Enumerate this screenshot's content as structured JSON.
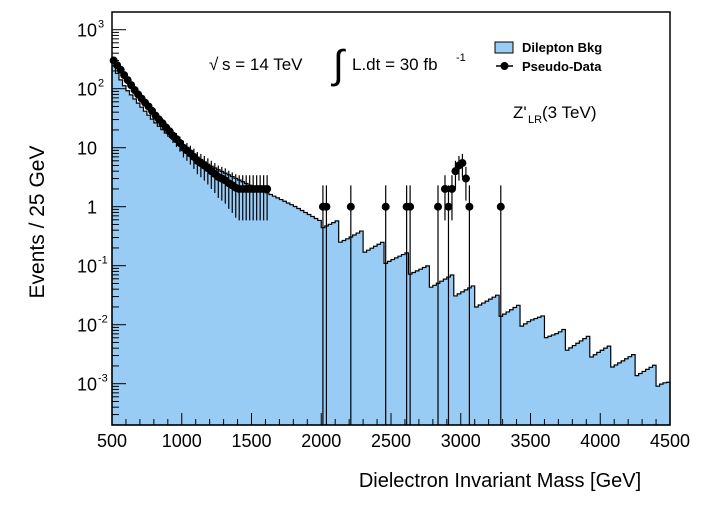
{
  "chart_data": {
    "type": "histogram_with_points",
    "xlabel": "Dielectron Invariant Mass [GeV]",
    "ylabel": "Events / 25 GeV",
    "xlim": [
      500,
      4500
    ],
    "ylim_log10": [
      -3.7,
      3.3
    ],
    "y_scale": "log",
    "x_ticks": [
      500,
      1000,
      1500,
      2000,
      2500,
      3000,
      3500,
      4000,
      4500
    ],
    "y_ticks": [
      {
        "value": 1000,
        "label": "10",
        "exp": "3"
      },
      {
        "value": 100,
        "label": "10",
        "exp": "2"
      },
      {
        "value": 10,
        "label": "10",
        "exp": ""
      },
      {
        "value": 1,
        "label": "1",
        "exp": ""
      },
      {
        "value": 0.1,
        "label": "10",
        "exp": "-1"
      },
      {
        "value": 0.01,
        "label": "10",
        "exp": "-2"
      },
      {
        "value": 0.001,
        "label": "10",
        "exp": "-3"
      }
    ],
    "annotations": {
      "sqrt_s": "s = 14 TeV",
      "sqrt_symbol": "√",
      "integral_symbol": "∫",
      "lumi": "L.dt = 30 fb",
      "lumi_exp": "-1",
      "signal_main": "Z'",
      "signal_sub": "LR",
      "signal_rest": " (3 TeV)"
    },
    "legend": {
      "placement": "top-right",
      "entries": [
        {
          "label": "Dilepton Bkg",
          "kind": "fill"
        },
        {
          "label": "Pseudo-Data",
          "kind": "marker"
        }
      ]
    },
    "colors": {
      "background_fill": "#99ccf5",
      "outline": "#000000",
      "marker": "#000000"
    },
    "series": [
      {
        "name": "Dilepton Bkg",
        "kind": "step_fill",
        "bin_width": 25,
        "log_anchors": [
          [
            500,
            2.45
          ],
          [
            550,
            2.2
          ],
          [
            600,
            2.0
          ],
          [
            700,
            1.72
          ],
          [
            800,
            1.45
          ],
          [
            900,
            1.22
          ],
          [
            1000,
            1.02
          ],
          [
            1200,
            0.7
          ],
          [
            1500,
            0.35
          ],
          [
            1600,
            0.25
          ],
          [
            1800,
            0.02
          ],
          [
            2000,
            -0.25
          ],
          [
            2200,
            -0.5
          ],
          [
            2500,
            -0.82
          ],
          [
            2800,
            -1.2
          ],
          [
            3000,
            -1.4
          ],
          [
            3300,
            -1.72
          ],
          [
            3500,
            -1.9
          ],
          [
            3700,
            -2.2
          ],
          [
            4000,
            -2.45
          ],
          [
            4200,
            -2.65
          ],
          [
            4450,
            -2.9
          ],
          [
            4500,
            -3.0
          ]
        ]
      },
      {
        "name": "Pseudo-Data",
        "kind": "points",
        "points": [
          [
            512,
            300
          ],
          [
            537,
            250
          ],
          [
            562,
            210
          ],
          [
            587,
            170
          ],
          [
            612,
            140
          ],
          [
            637,
            115
          ],
          [
            662,
            95
          ],
          [
            687,
            80
          ],
          [
            712,
            68
          ],
          [
            737,
            58
          ],
          [
            762,
            50
          ],
          [
            787,
            42
          ],
          [
            812,
            35
          ],
          [
            837,
            30
          ],
          [
            862,
            26
          ],
          [
            887,
            22
          ],
          [
            912,
            19
          ],
          [
            937,
            16
          ],
          [
            962,
            14
          ],
          [
            987,
            12
          ],
          [
            1012,
            10
          ],
          [
            1037,
            9
          ],
          [
            1062,
            8
          ],
          [
            1087,
            7
          ],
          [
            1112,
            6
          ],
          [
            1137,
            5.5
          ],
          [
            1162,
            5
          ],
          [
            1187,
            4.5
          ],
          [
            1212,
            4
          ],
          [
            1237,
            3.6
          ],
          [
            1262,
            3.2
          ],
          [
            1287,
            3
          ],
          [
            1312,
            2.8
          ],
          [
            1337,
            2.5
          ],
          [
            1362,
            2.3
          ],
          [
            1387,
            2.1
          ],
          [
            1412,
            2
          ],
          [
            1437,
            2
          ],
          [
            1462,
            2
          ],
          [
            1487,
            2
          ],
          [
            1512,
            2
          ],
          [
            1537,
            2
          ],
          [
            1562,
            2
          ],
          [
            1587,
            2
          ],
          [
            1612,
            2
          ],
          [
            2012,
            1
          ],
          [
            2037,
            1
          ],
          [
            2212,
            1
          ],
          [
            2462,
            1
          ],
          [
            2612,
            1
          ],
          [
            2637,
            1
          ],
          [
            2837,
            1
          ],
          [
            2887,
            2
          ],
          [
            2912,
            1
          ],
          [
            2937,
            2
          ],
          [
            2962,
            4
          ],
          [
            2987,
            5
          ],
          [
            3012,
            5.5
          ],
          [
            3037,
            3
          ],
          [
            3062,
            1
          ],
          [
            3287,
            1
          ]
        ]
      }
    ]
  }
}
